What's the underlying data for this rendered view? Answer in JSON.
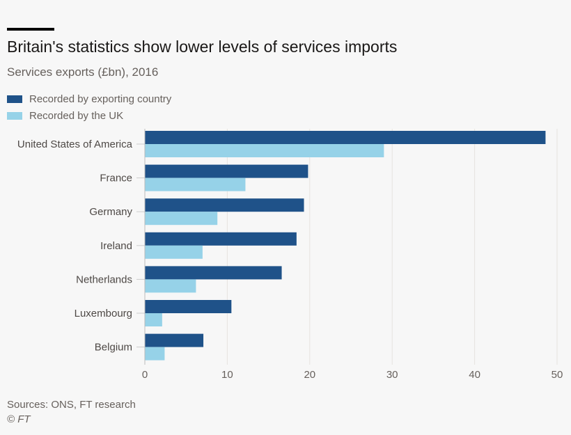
{
  "chart_data": {
    "type": "bar",
    "orientation": "horizontal",
    "title": "Britain's statistics show lower levels of services imports",
    "subtitle": "Services exports (£bn), 2016",
    "categories": [
      "United States of America",
      "France",
      "Germany",
      "Ireland",
      "Netherlands",
      "Luxembourg",
      "Belgium"
    ],
    "series": [
      {
        "name": "Recorded by exporting country",
        "color": "#1f5289",
        "values": [
          48.6,
          19.8,
          19.3,
          18.4,
          16.6,
          10.5,
          7.1
        ]
      },
      {
        "name": "Recorded by the UK",
        "color": "#96d2e8",
        "values": [
          29.0,
          12.2,
          8.8,
          7.0,
          6.2,
          2.1,
          2.4
        ]
      }
    ],
    "xlim": [
      0,
      50
    ],
    "xticks": [
      0,
      10,
      20,
      30,
      40,
      50
    ],
    "grid": "vertical",
    "legend": "top-left"
  },
  "footer": {
    "sources": "Sources: ONS, FT research",
    "copyright": "© FT"
  }
}
